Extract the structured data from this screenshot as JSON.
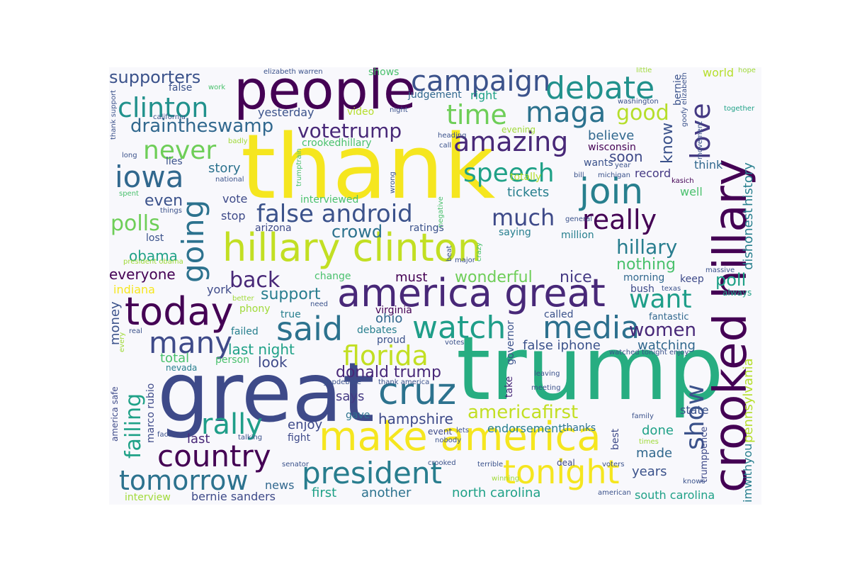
{
  "palette": {
    "dark_purple": "#440154",
    "indigo": "#46327e",
    "blue": "#365c8d",
    "teal": "#277f8e",
    "green_teal": "#1fa187",
    "green": "#4ac16d",
    "lime": "#a0da39",
    "yellow": "#f5e61f",
    "background": "#f8f8fc"
  },
  "words": {
    "thank": "thank",
    "trump": "trump",
    "great": "great",
    "people": "people",
    "hillary_clinton": "hillary clinton",
    "make_america": "make america",
    "america_great": "america great",
    "crooked_hillary": "crooked hillary",
    "today": "today",
    "join": "join",
    "campaign": "campaign",
    "debate": "debate",
    "clinton": "clinton",
    "maga": "maga",
    "time": "time",
    "amazing": "amazing",
    "good": "good",
    "love": "love",
    "iowa": "iowa",
    "never": "never",
    "speech": "speech",
    "cruz": "cruz",
    "said": "said",
    "watch": "watch",
    "media": "media",
    "president": "president",
    "tonight": "tonight",
    "country": "country",
    "tomorrow": "tomorrow",
    "going": "going",
    "many": "many",
    "florida": "florida",
    "rally": "rally",
    "show": "show",
    "false_android": "false android",
    "much": "much",
    "really": "really",
    "votetrump": "votetrump",
    "draintheswamp": "draintheswamp",
    "supporters": "supporters",
    "yesterday": "yesterday",
    "video": "video",
    "judgement": "judgement",
    "right": "right",
    "shows": "shows",
    "elizabeth_warren": "elizabeth warren",
    "false": "false",
    "work": "work",
    "bernie": "bernie",
    "world": "world",
    "hope": "hope",
    "little": "little",
    "night": "night",
    "washington": "washington",
    "goofy_elizabeth": "goofy elizabeth",
    "together": "together",
    "thank_support": "thank support",
    "california": "california",
    "evening": "evening",
    "crookedhillary": "crookedhillary",
    "believe": "believe",
    "know": "know",
    "soon": "soon",
    "wisconsin": "wisconsin",
    "movement": "movement",
    "history": "history",
    "heading": "heading",
    "call": "call",
    "badly": "badly",
    "long": "long",
    "totally": "totally",
    "story": "story",
    "lies": "lies",
    "trumptrain": "trumptrain",
    "wants": "wants",
    "year": "year",
    "bill": "bill",
    "michigan": "michigan",
    "record": "record",
    "think": "think",
    "kasich": "kasich",
    "dishonest": "dishonest",
    "national": "national",
    "wrong": "wrong",
    "tickets": "tickets",
    "well": "well",
    "even": "even",
    "spent": "spent",
    "things": "things",
    "vote": "vote",
    "stop": "stop",
    "interviewed": "interviewed",
    "negative": "negative",
    "arizona": "arizona",
    "polls": "polls",
    "lost": "lost",
    "crowd": "crowd",
    "ratings": "ratings",
    "saying": "saying",
    "million": "million",
    "obama": "obama",
    "hillary": "hillary",
    "beat": "beat",
    "crazy": "crazy",
    "major": "major",
    "president_obama": "president obama",
    "everyone": "everyone",
    "back": "back",
    "must": "must",
    "nice": "nice",
    "nothing": "nothing",
    "morning": "morning",
    "massive": "massive",
    "indiana": "indiana",
    "change": "change",
    "wonderful": "wonderful",
    "keep": "keep",
    "poll": "poll",
    "york": "york",
    "support": "support",
    "bush": "bush",
    "texas": "texas",
    "always": "always",
    "better": "better",
    "want": "want",
    "need": "need",
    "phony": "phony",
    "true": "true",
    "virginia": "virginia",
    "called": "called",
    "fantastic": "fantastic",
    "money": "money",
    "ohio": "ohio",
    "women": "women",
    "real": "real",
    "failed": "failed",
    "debates": "debates",
    "governor": "governor",
    "every": "every",
    "proud": "proud",
    "watched": "watched",
    "tonight_enjoy": "tonight enjoy",
    "votes": "votes",
    "last_night": "last night",
    "false_iphone": "false iphone",
    "watching": "watching",
    "pennsylvania": "pennsylvania",
    "total": "total",
    "person": "person",
    "look": "look",
    "nevada": "nevada",
    "donald_trump": "donald trump",
    "take": "take",
    "leaving": "leaving",
    "failing": "failing",
    "gopdebate": "gopdebate",
    "thank_america": "thank america",
    "meeting": "meeting",
    "says": "says",
    "americafirst": "americafirst",
    "america_safe": "america safe",
    "marco_rubio": "marco rubio",
    "enjoy": "enjoy",
    "gave": "gave",
    "hampshire": "hampshire",
    "state": "state",
    "family": "family",
    "last": "last",
    "fact": "fact",
    "talking": "talking",
    "event": "event",
    "lets": "lets",
    "endorsement": "endorsement",
    "thanks": "thanks",
    "done": "done",
    "fight": "fight",
    "nobody": "nobody",
    "best": "best",
    "times": "times",
    "made": "made",
    "trumppence": "trumppence",
    "imwithyou": "imwithyou",
    "crooked": "crooked",
    "senator": "senator",
    "terrible": "terrible",
    "deal": "deal",
    "voters": "voters",
    "winning": "winning",
    "knows": "knows",
    "years": "years",
    "news": "news",
    "first": "first",
    "another": "another",
    "interview": "interview",
    "bernie_sanders": "bernie sanders",
    "north_carolina": "north carolina",
    "south_carolina": "south carolina",
    "american": "american",
    "general": "general"
  }
}
